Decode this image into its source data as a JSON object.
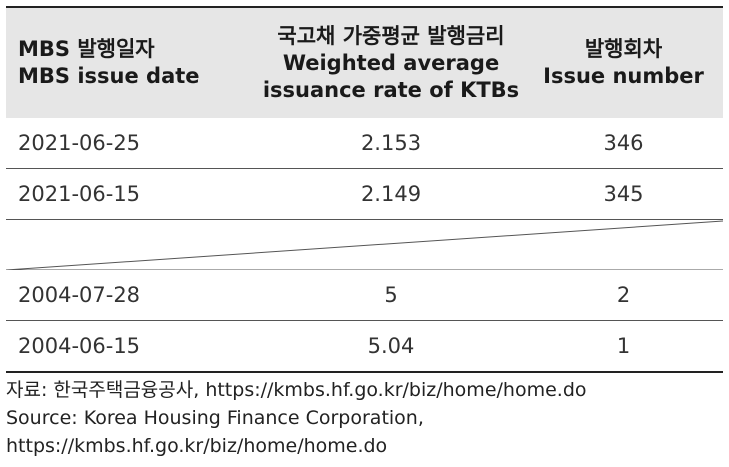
{
  "table": {
    "headers": {
      "col1": {
        "ko": "MBS 발행일자",
        "en": "MBS issue date"
      },
      "col2": {
        "ko": "국고채 가중평균 발행금리",
        "en1": "Weighted average",
        "en2": "issuance rate of KTBs"
      },
      "col3": {
        "ko": "발행회차",
        "en": "Issue number"
      }
    },
    "rows_top": [
      {
        "date": "2021-06-25",
        "rate": "2.153",
        "issue": "346"
      },
      {
        "date": "2021-06-15",
        "rate": "2.149",
        "issue": "345"
      }
    ],
    "rows_bottom": [
      {
        "date": "2004-07-28",
        "rate": "5",
        "issue": "2"
      },
      {
        "date": "2004-06-15",
        "rate": "5.04",
        "issue": "1"
      }
    ]
  },
  "footer": {
    "ko": "자료: 한국주택금융공사, https://kmbs.hf.go.kr/biz/home/home.do",
    "en": "Source: Korea Housing Finance Corporation, https://kmbs.hf.go.kr/biz/home/home.do"
  }
}
